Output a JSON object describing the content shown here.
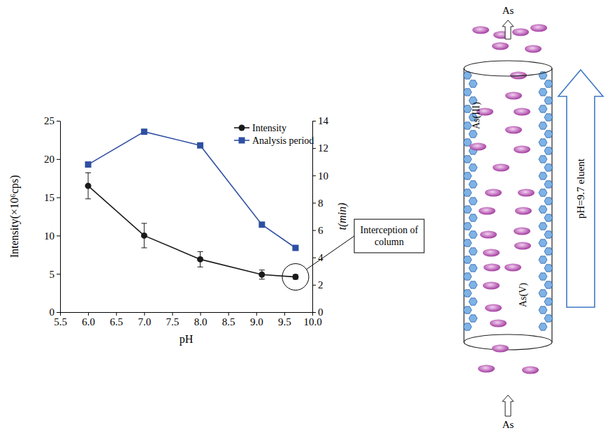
{
  "chart_data": {
    "type": "line",
    "x": [
      6.0,
      7.0,
      8.0,
      9.1,
      9.7
    ],
    "series": [
      {
        "name": "Intensity",
        "color": "#1a1a1a",
        "marker": "circle",
        "axis": "y",
        "values": [
          16.5,
          10.0,
          6.9,
          4.9,
          4.6
        ],
        "error": [
          1.7,
          1.6,
          1.0,
          0.6,
          0.3
        ]
      },
      {
        "name": "Analysis period",
        "color": "#2f4fa3",
        "marker": "square",
        "axis": "y2",
        "values": [
          10.8,
          13.2,
          12.2,
          6.4,
          4.7
        ]
      }
    ],
    "x_label": "pH",
    "y_label": "Intensity(×10⁶cps)",
    "y2_label": "t(min)",
    "xlim": [
      5.5,
      10.0
    ],
    "xticks": [
      5.5,
      {
        "value": 6,
        "label": "6.0"
      },
      6.5,
      {
        "value": 7,
        "label": "7.0"
      },
      7.5,
      {
        "value": 8,
        "label": "8.0"
      },
      8.5,
      {
        "value": 9,
        "label": "9.0"
      },
      9.5,
      {
        "value": 10,
        "label": "10.0"
      }
    ],
    "ylim": [
      0,
      25
    ],
    "yticks": [
      0,
      5,
      10,
      15,
      20,
      25
    ],
    "y2lim": [
      0,
      14
    ],
    "y2ticks": [
      0,
      2,
      4,
      6,
      8,
      10,
      12,
      14
    ],
    "legend": "upper right",
    "grid": false,
    "annotations": [
      {
        "text": "Interception of column",
        "x": 9.7,
        "y": 4.6
      }
    ]
  },
  "diagram": {
    "top_label": "As",
    "bottom_label": "As",
    "species": [
      "As(III)",
      "As(V)"
    ],
    "eluent": "pH=9.7 eluent"
  }
}
